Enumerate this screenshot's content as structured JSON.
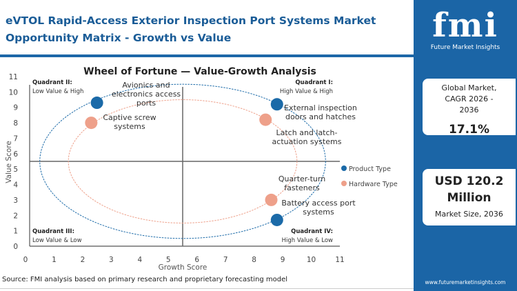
{
  "title": "eVTOL Rapid-Access Exterior Inspection Port Systems Market Opportunity Matrix - Growth vs Value",
  "source": "Source: FMI analysis based on primary research and proprietary forecasting model",
  "brand": {
    "logo_text": "fmi",
    "name": "Future Market Insights",
    "url": "www.futuremarketinsights.com"
  },
  "cards": [
    {
      "label": "Global Market, CAGR 2026 - 2036",
      "value": "17.1%"
    },
    {
      "value": "USD 120.2 Million",
      "label": "Market Size, 2036"
    }
  ],
  "colors": {
    "product": "#1b6aa8",
    "hardware": "#eea08a",
    "title": "#1a5c97",
    "panel": "#1b65a6"
  },
  "chart_data": {
    "type": "scatter",
    "title": "Wheel of Fortune — Value-Growth Analysis",
    "xlabel": "Growth Score",
    "ylabel": "Value Score",
    "xlim": [
      0,
      11
    ],
    "ylim": [
      0,
      11
    ],
    "xticks": [
      0,
      1,
      2,
      3,
      4,
      5,
      6,
      7,
      8,
      9,
      10,
      11
    ],
    "yticks": [
      0,
      1,
      2,
      3,
      4,
      5,
      6,
      7,
      8,
      9,
      10,
      11
    ],
    "dividers": {
      "x": 5.5,
      "y": 5.5
    },
    "legend_position": "right",
    "quadrants": [
      {
        "name": "Quadrant II:",
        "desc": "Low Value & High",
        "pos": "top-left"
      },
      {
        "name": "Quadrant I:",
        "desc": "High Value & High",
        "pos": "top-right"
      },
      {
        "name": "Quadrant III:",
        "desc": "Low Value & Low",
        "pos": "bottom-left"
      },
      {
        "name": "Quadrant IV:",
        "desc": "High Value & Low",
        "pos": "bottom-right"
      }
    ],
    "series": [
      {
        "name": "Product Type",
        "color": "#1b6aa8",
        "ellipse": {
          "cx": 5.5,
          "cy": 5.5,
          "rx": 5,
          "ry": 5
        },
        "points": [
          {
            "label": "Avionics and electronics access ports",
            "x": 2.5,
            "y": 9.3
          },
          {
            "label": "External inspection doors and hatches",
            "x": 8.8,
            "y": 9.2
          },
          {
            "label": "Battery access port systems",
            "x": 8.8,
            "y": 1.7
          }
        ]
      },
      {
        "name": "Hardware Type",
        "color": "#eea08a",
        "ellipse": {
          "cx": 5.5,
          "cy": 5.5,
          "rx": 4,
          "ry": 4
        },
        "points": [
          {
            "label": "Captive screw systems",
            "x": 2.3,
            "y": 8.0
          },
          {
            "label": "Latch and latch-actuation systems",
            "x": 8.4,
            "y": 8.2
          },
          {
            "label": "Quarter-turn fasteners",
            "x": 8.6,
            "y": 3.0
          }
        ]
      }
    ]
  }
}
